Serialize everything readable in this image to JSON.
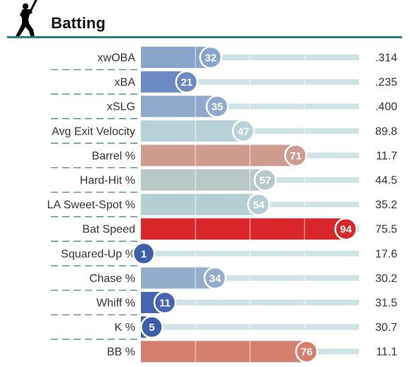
{
  "header": {
    "title": "Batting",
    "icon": "batter-silhouette-icon"
  },
  "chart_data": {
    "type": "bar",
    "title": "Batting",
    "orientation": "horizontal",
    "xlim": [
      0,
      100
    ],
    "categories": [
      "xwOBA",
      "xBA",
      "xSLG",
      "Avg Exit Velocity",
      "Barrel %",
      "Hard-Hit %",
      "LA Sweet-Spot %",
      "Bat Speed",
      "Squared-Up %",
      "Chase %",
      "Whiff %",
      "K %",
      "BB %"
    ],
    "series": [
      {
        "values": [
          32,
          21,
          35,
          47,
          71,
          57,
          54,
          94,
          1,
          34,
          11,
          5,
          76
        ]
      }
    ],
    "stat_values": [
      ".314",
      ".235",
      ".400",
      "89.8",
      "11.7",
      "44.5",
      "35.2",
      "75.5",
      "17.6",
      "30.2",
      "31.5",
      "30.7",
      "11.1"
    ],
    "colors": [
      "#8aa5cb",
      "#6b89c2",
      "#8fa9cc",
      "#b7d2d6",
      "#d09b8f",
      "#bac7c7",
      "#b4cfd2",
      "#d8262b",
      "#3d5ea8",
      "#94adcd",
      "#4764b0",
      "#3c5da8",
      "#d57f6e"
    ],
    "track_color": "#cfe3e5",
    "grid": true
  }
}
